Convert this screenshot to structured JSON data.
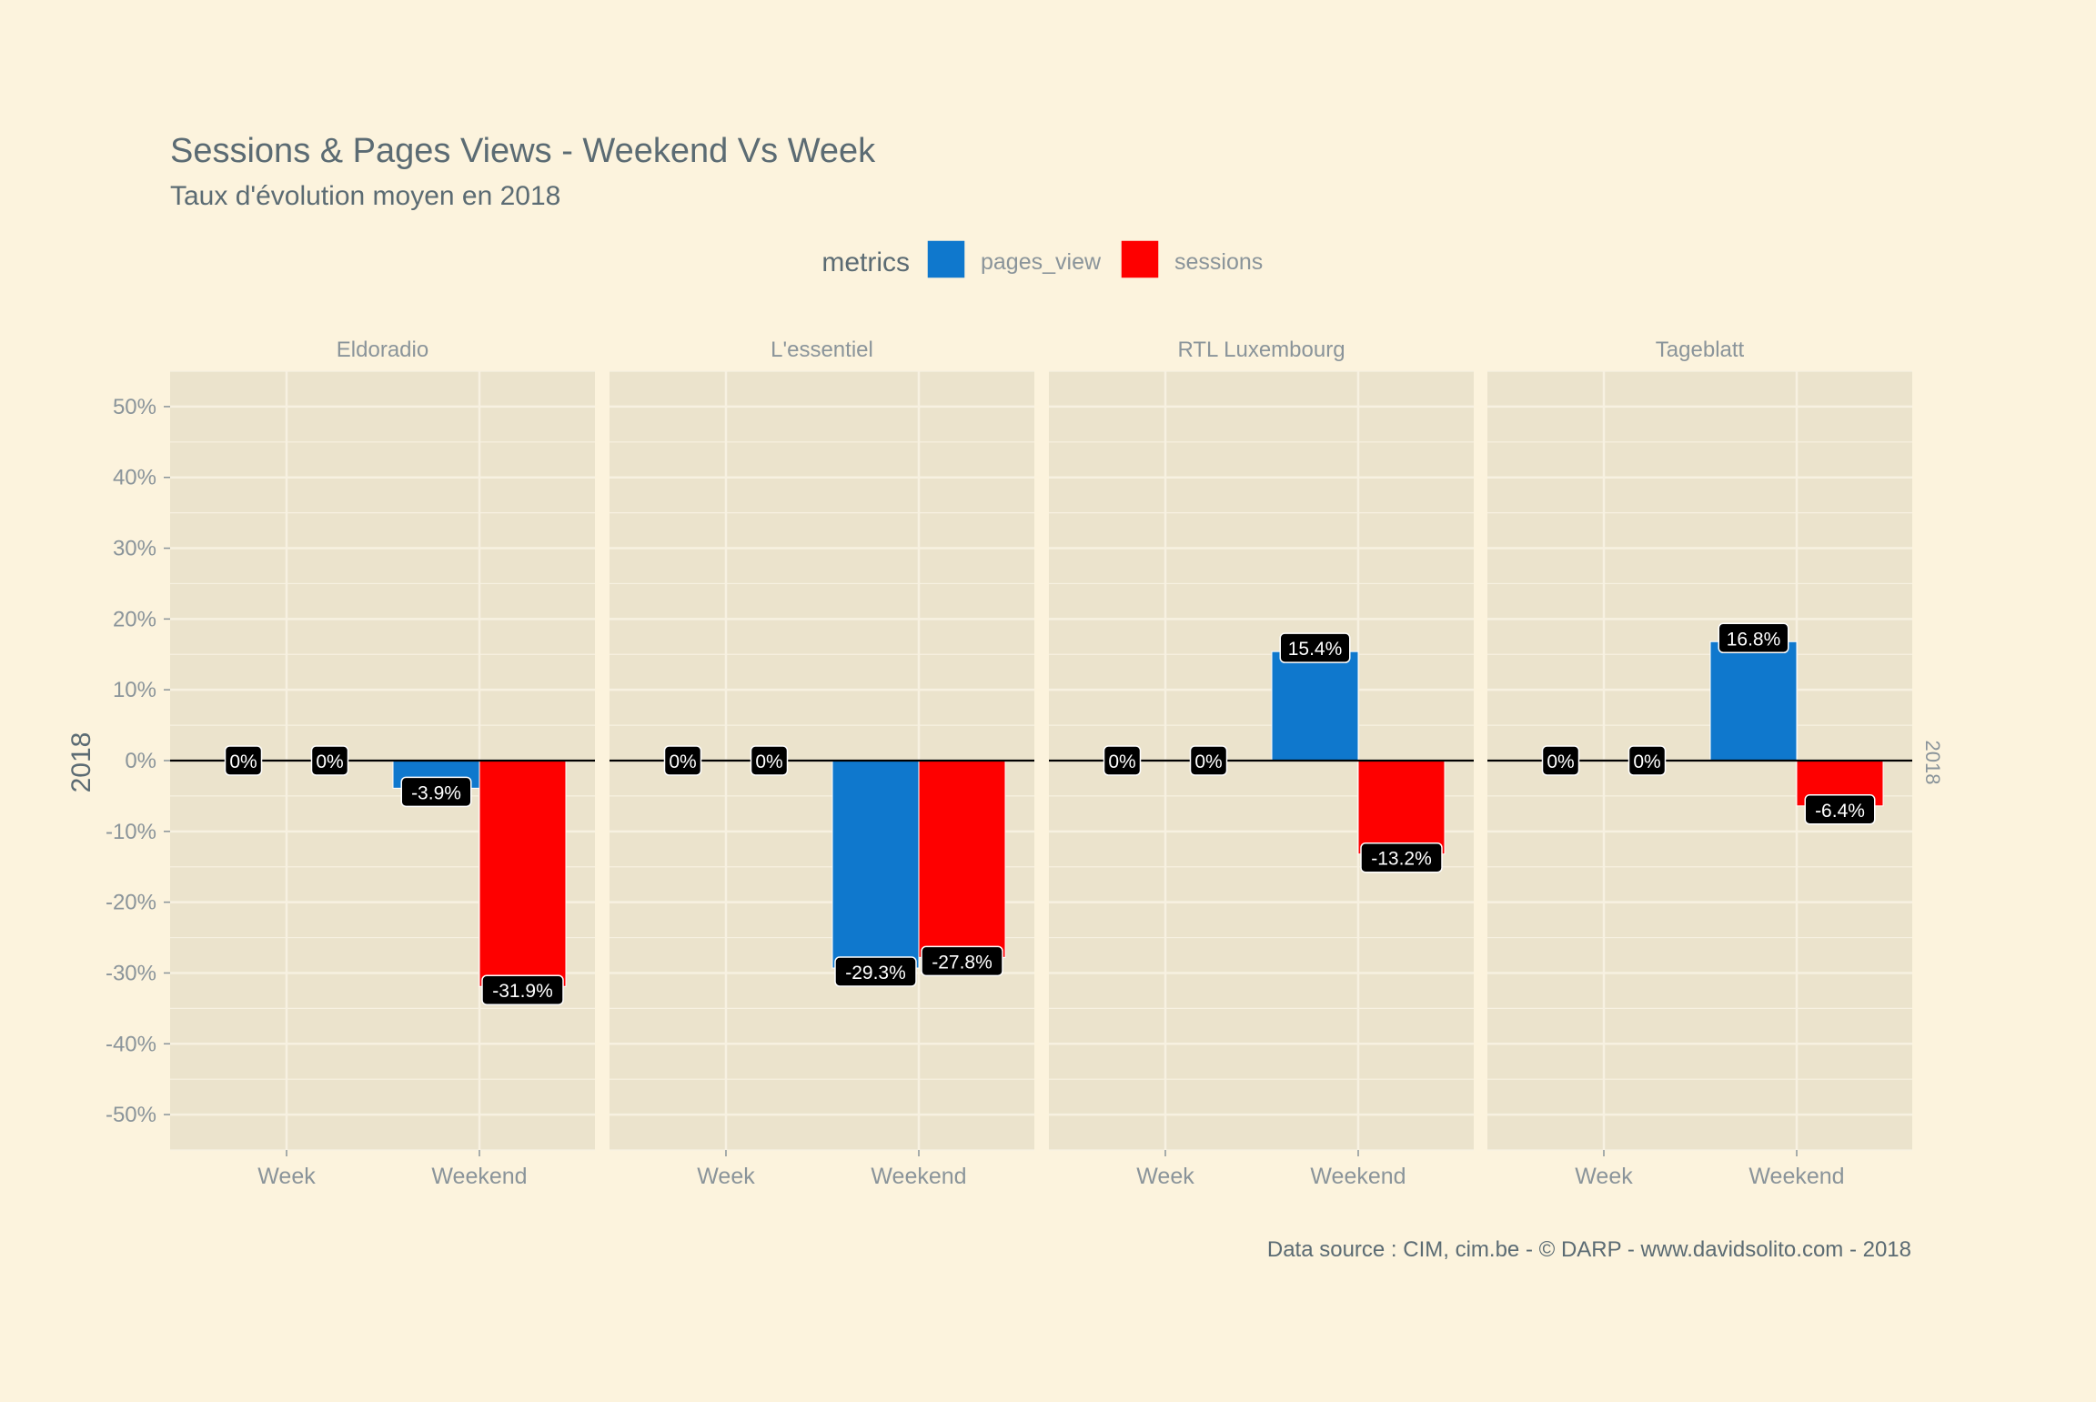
{
  "chart_data": {
    "type": "bar",
    "title": "Sessions & Pages Views - Weekend Vs Week",
    "subtitle": "Taux d'évolution moyen en 2018",
    "caption": "Data source : CIM, cim.be - © DARP - www.davidsolito.com - 2018",
    "ylabel": "2018",
    "strip_right": "2018",
    "legend": {
      "title": "metrics",
      "position": "top",
      "entries": [
        "pages_view",
        "sessions"
      ]
    },
    "ylim": [
      -55,
      55
    ],
    "yticks": [
      50,
      40,
      30,
      20,
      10,
      0,
      -10,
      -20,
      -30,
      -40,
      -50
    ],
    "ytick_labels": [
      "50%",
      "40%",
      "30%",
      "20%",
      "10%",
      "0%",
      "-10%",
      "-20%",
      "-30%",
      "-40%",
      "-50%"
    ],
    "categories": [
      "Week",
      "Weekend"
    ],
    "colors": {
      "pages_view": "#0f78cd",
      "sessions": "#fe0000",
      "panel": "#ebe3cc",
      "grid": "#f7f1e1",
      "label_bg": "#000000",
      "label_text": "#ffffff",
      "text": "#5b6b73",
      "axis_text": "#8a949a"
    },
    "facets": [
      {
        "name": "Eldoradio",
        "series": [
          {
            "name": "pages_view",
            "values": [
              0,
              -3.9
            ],
            "labels": [
              "0%",
              "-3.9%"
            ]
          },
          {
            "name": "sessions",
            "values": [
              0,
              -31.9
            ],
            "labels": [
              "0%",
              "-31.9%"
            ]
          }
        ]
      },
      {
        "name": "L'essentiel",
        "series": [
          {
            "name": "pages_view",
            "values": [
              0,
              -29.3
            ],
            "labels": [
              "0%",
              "-29.3%"
            ]
          },
          {
            "name": "sessions",
            "values": [
              0,
              -27.8
            ],
            "labels": [
              "0%",
              "-27.8%"
            ]
          }
        ]
      },
      {
        "name": "RTL Luxembourg",
        "series": [
          {
            "name": "pages_view",
            "values": [
              0,
              15.4
            ],
            "labels": [
              "0%",
              "15.4%"
            ]
          },
          {
            "name": "sessions",
            "values": [
              0,
              -13.2
            ],
            "labels": [
              "0%",
              "-13.2%"
            ]
          }
        ]
      },
      {
        "name": "Tageblatt",
        "series": [
          {
            "name": "pages_view",
            "values": [
              0,
              16.8
            ],
            "labels": [
              "0%",
              "16.8%"
            ]
          },
          {
            "name": "sessions",
            "values": [
              0,
              -6.4
            ],
            "labels": [
              "0%",
              "-6.4%"
            ]
          }
        ]
      }
    ]
  }
}
